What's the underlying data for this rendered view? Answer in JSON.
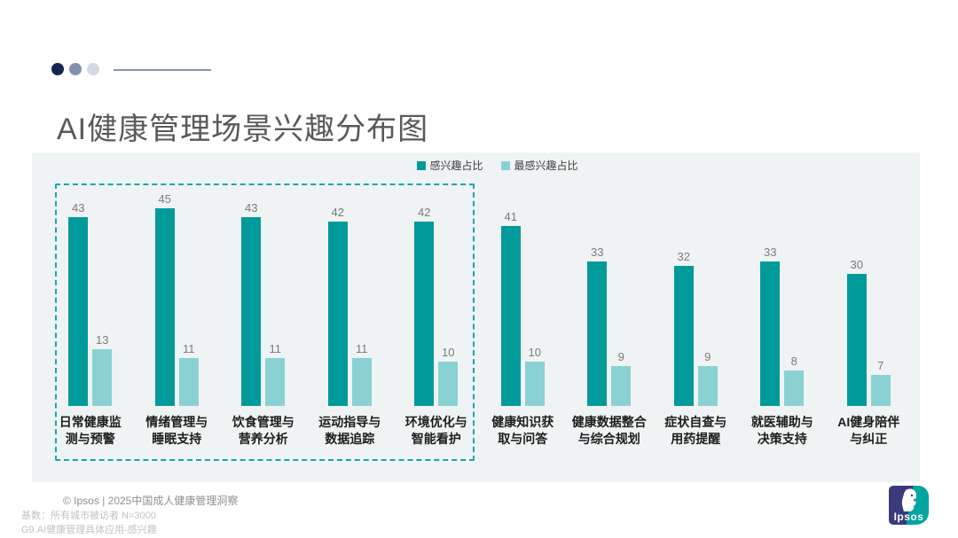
{
  "slide": {
    "title": "AI健康管理场景兴趣分布图"
  },
  "decoration": {
    "dot_colors": [
      "#16254e",
      "#8292ac",
      "#d4dae3"
    ],
    "line_color": "#8495ae"
  },
  "legend": [
    {
      "label": "感兴趣占比",
      "color": "#019a9b"
    },
    {
      "label": "最感兴趣占比",
      "color": "#8ad1d3"
    }
  ],
  "chart_data": {
    "type": "bar",
    "categories": [
      "日常健康监\n测与预警",
      "情绪管理与\n睡眠支持",
      "饮食管理与\n营养分析",
      "运动指导与\n数据追踪",
      "环境优化与\n智能看护",
      "健康知识获\n取与问答",
      "健康数据整合\n与综合规划",
      "症状自查与\n用药提醒",
      "就医辅助与\n决策支持",
      "AI健身陪伴\n与纠正"
    ],
    "series": [
      {
        "name": "感兴趣占比",
        "color": "#019a9b",
        "values": [
          43,
          45,
          43,
          42,
          42,
          41,
          33,
          32,
          33,
          30
        ]
      },
      {
        "name": "最感兴趣占比",
        "color": "#8ad1d3",
        "values": [
          13,
          11,
          11,
          11,
          10,
          10,
          9,
          9,
          8,
          7
        ]
      }
    ],
    "title": "AI健康管理场景兴趣分布图",
    "xlabel": "",
    "ylabel": "",
    "ylim": [
      0,
      50
    ],
    "grid": false,
    "legend_position": "top-center",
    "value_labels": true,
    "highlight_box": {
      "first_category": 0,
      "last_category": 4,
      "style": "teal-dashed-outline"
    }
  },
  "footer": {
    "source": "© Ipsos | 2025中国成人健康管理洞察",
    "base": "基数：所有城市被访者 N=3000",
    "question": "G9.AI健康管理具体应用-感兴趣"
  },
  "logo": {
    "text": "Ipsos",
    "left_color": "#3b3a7c",
    "right_color": "#00a5a0"
  }
}
